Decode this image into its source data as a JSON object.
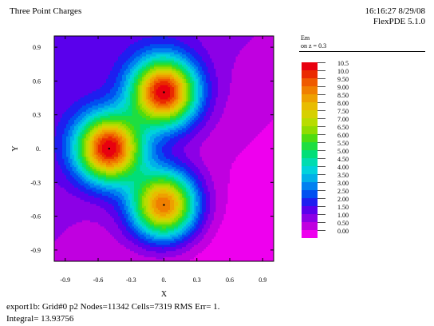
{
  "header": {
    "title": "Three Point Charges",
    "timestamp": "16:16:27 8/29/08",
    "software": "FlexPDE 5.1.0"
  },
  "legend": {
    "title": "Em",
    "subtitle": "on z = 0.3",
    "levels": [
      {
        "label": "10.5",
        "color": "#e8000f"
      },
      {
        "label": "10.0",
        "color": "#ea2a00"
      },
      {
        "label": "9.50",
        "color": "#ef5a00"
      },
      {
        "label": "9.00",
        "color": "#f07f00"
      },
      {
        "label": "8.50",
        "color": "#eea000"
      },
      {
        "label": "8.00",
        "color": "#e8bc00"
      },
      {
        "label": "7.50",
        "color": "#d6d000"
      },
      {
        "label": "7.00",
        "color": "#b8dc00"
      },
      {
        "label": "6.50",
        "color": "#90dc00"
      },
      {
        "label": "6.00",
        "color": "#4edc10"
      },
      {
        "label": "5.50",
        "color": "#1ede40"
      },
      {
        "label": "5.00",
        "color": "#00de78"
      },
      {
        "label": "4.50",
        "color": "#00dcb0"
      },
      {
        "label": "4.00",
        "color": "#00d2dc"
      },
      {
        "label": "3.50",
        "color": "#00b0e8"
      },
      {
        "label": "3.00",
        "color": "#0080f0"
      },
      {
        "label": "2.50",
        "color": "#0050f0"
      },
      {
        "label": "2.00",
        "color": "#1e1ef0"
      },
      {
        "label": "1.50",
        "color": "#5a00ec"
      },
      {
        "label": "1.00",
        "color": "#8c00e6"
      },
      {
        "label": "0.50",
        "color": "#c000e0"
      },
      {
        "label": "0.00",
        "color": "#ee00ee"
      }
    ]
  },
  "chart_data": {
    "type": "heatmap",
    "xlabel": "X",
    "ylabel": "Y",
    "xlim": [
      -1.0,
      1.0
    ],
    "ylim": [
      -1.0,
      1.0
    ],
    "xticks": [
      "-0.9",
      "-0.6",
      "-0.3",
      "0.",
      "0.3",
      "0.6",
      "0.9"
    ],
    "yticks": [
      "0.9",
      "0.6",
      "0.3",
      "0.",
      "-0.3",
      "-0.6",
      "-0.9"
    ],
    "xtick_values": [
      -0.9,
      -0.6,
      -0.3,
      0,
      0.3,
      0.6,
      0.9
    ],
    "ytick_values": [
      0.9,
      0.6,
      0.3,
      0,
      -0.3,
      -0.6,
      -0.9
    ],
    "field": "Em",
    "plane": "z = 0.3",
    "charges": [
      {
        "x": 0.0,
        "y": 0.5,
        "peak": 10.5
      },
      {
        "x": -0.5,
        "y": 0.0,
        "peak": 10.5
      },
      {
        "x": 0.0,
        "y": -0.5,
        "peak": 9.5
      }
    ],
    "levels": [
      0.0,
      0.5,
      1.0,
      1.5,
      2.0,
      2.5,
      3.0,
      3.5,
      4.0,
      4.5,
      5.0,
      5.5,
      6.0,
      6.5,
      7.0,
      7.5,
      8.0,
      8.5,
      9.0,
      9.5,
      10.0,
      10.5
    ]
  },
  "footer": {
    "line1": "export1b:  Grid#0  p2  Nodes=11342 Cells=7319 RMS Err= 1.",
    "line2": "Integral=  13.93756"
  }
}
